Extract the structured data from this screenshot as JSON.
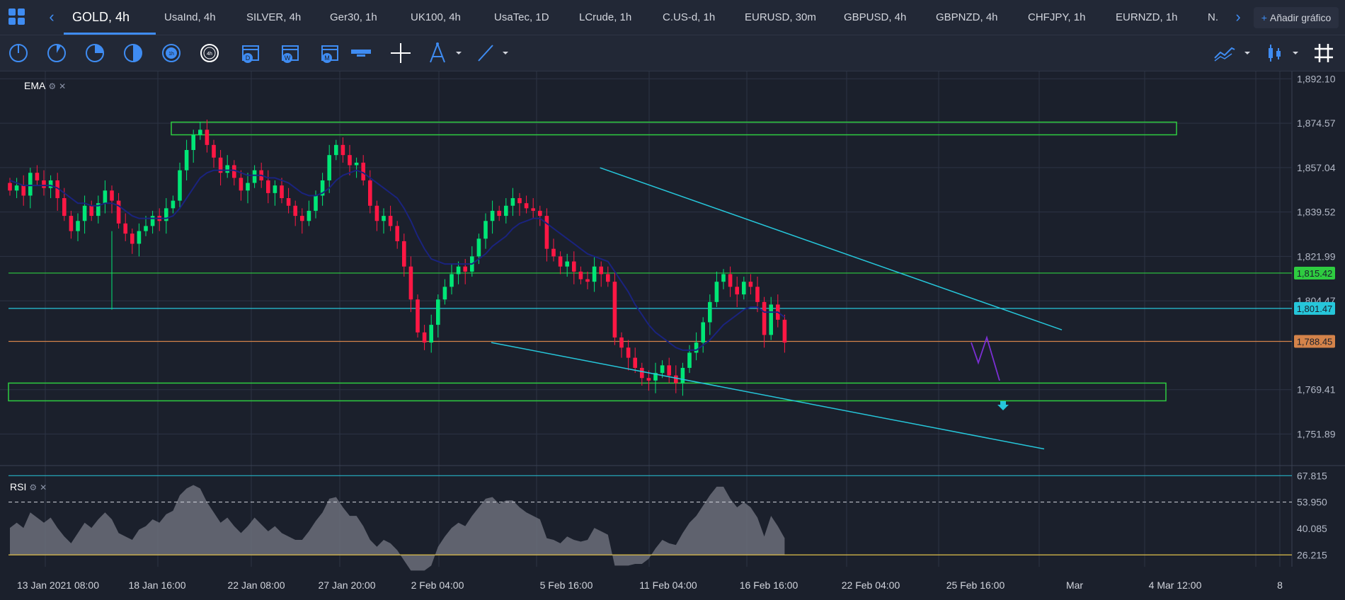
{
  "tabs": [
    {
      "label": "GOLD, 4h",
      "active": true
    },
    {
      "label": "UsaInd, 4h"
    },
    {
      "label": "SILVER, 4h"
    },
    {
      "label": "Ger30, 1h"
    },
    {
      "label": "UK100, 4h"
    },
    {
      "label": "UsaTec, 1D"
    },
    {
      "label": "LCrude, 1h"
    },
    {
      "label": "C.US-d, 1h"
    },
    {
      "label": "EURUSD, 30m"
    },
    {
      "label": "GBPUSD, 4h"
    },
    {
      "label": "GBPNZD, 4h"
    },
    {
      "label": "CHFJPY, 1h"
    },
    {
      "label": "EURNZD, 1h"
    },
    {
      "label": "N."
    }
  ],
  "add_chart_label": "Añadir gráfico",
  "toolbar": {
    "timeframe_4h": "4h",
    "day_label": "D",
    "week_label": "W",
    "month_label": "M",
    "tools": [
      "clock-1m-icon",
      "clock-5m-icon",
      "clock-15m-icon",
      "clock-30m-icon",
      "clock-1h-icon",
      "clock-4h-icon",
      "calendar-day-icon",
      "calendar-week-icon",
      "calendar-month-icon",
      "range-icon",
      "crosshair-icon",
      "pitchfork-icon",
      "trendline-icon",
      "indicators-icon",
      "candle-type-icon",
      "grid-icon"
    ]
  },
  "indicators": {
    "main": "EMA",
    "sub": "RSI"
  },
  "colors": {
    "bull": "#00e676",
    "bear": "#ff1744",
    "ema": "#1a237e",
    "channel": "#26c6da",
    "zone": "#2ecc40",
    "level_support": "#2ecc40",
    "level_cyan": "#26c6da",
    "level_current": "#d4834a",
    "rsi_line": "#e0c14a",
    "forecast": "#7b2fd4"
  },
  "chart_data": {
    "type": "candlestick",
    "symbol": "GOLD",
    "timeframe": "4h",
    "y_ticks": [
      "1,892.10",
      "1,874.57",
      "1,857.04",
      "1,839.52",
      "1,821.99",
      "1,804.47",
      "1,769.41",
      "1,751.89"
    ],
    "ylim": [
      1740.0,
      1895.0
    ],
    "x_ticks": [
      "13 Jan 2021 08:00",
      "18 Jan 16:00",
      "22 Jan 08:00",
      "27 Jan 20:00",
      "2 Feb 04:00",
      "5 Feb 16:00",
      "11 Feb 04:00",
      "16 Feb 16:00",
      "22 Feb 04:00",
      "25 Feb 16:00",
      "Mar",
      "4 Mar 12:00",
      "8"
    ],
    "levels": [
      {
        "value": 1815.42,
        "label": "1,815.42",
        "color": "#2ecc40"
      },
      {
        "value": 1801.47,
        "label": "1,801.47",
        "color": "#26c6da"
      },
      {
        "value": 1788.45,
        "label": "1,788.45",
        "color": "#d4834a"
      }
    ],
    "close_series": [
      1848,
      1850,
      1846,
      1855,
      1852,
      1849,
      1852,
      1845,
      1838,
      1832,
      1836,
      1842,
      1838,
      1843,
      1848,
      1844,
      1835,
      1831,
      1827,
      1832,
      1834,
      1838,
      1836,
      1841,
      1844,
      1856,
      1864,
      1870,
      1872,
      1866,
      1861,
      1855,
      1858,
      1853,
      1848,
      1851,
      1856,
      1852,
      1847,
      1850,
      1845,
      1842,
      1838,
      1836,
      1840,
      1846,
      1852,
      1862,
      1866,
      1862,
      1858,
      1859,
      1852,
      1842,
      1836,
      1838,
      1834,
      1828,
      1818,
      1805,
      1792,
      1788,
      1795,
      1805,
      1810,
      1815,
      1818,
      1816,
      1822,
      1829,
      1836,
      1840,
      1838,
      1842,
      1845,
      1843,
      1841,
      1840,
      1838,
      1825,
      1822,
      1818,
      1820,
      1816,
      1813,
      1812,
      1818,
      1815,
      1812,
      1790,
      1786,
      1782,
      1778,
      1774,
      1773,
      1776,
      1779,
      1775,
      1772,
      1778,
      1784,
      1788,
      1796,
      1804,
      1812,
      1815,
      1810,
      1807,
      1812,
      1810,
      1804,
      1791,
      1803,
      1797,
      1788
    ],
    "ema_series": [
      1852,
      1851,
      1850,
      1850,
      1850,
      1850,
      1850,
      1849,
      1847,
      1845,
      1843,
      1843,
      1842,
      1842,
      1843,
      1843,
      1842,
      1840,
      1838,
      1837,
      1837,
      1837,
      1837,
      1837,
      1838,
      1841,
      1845,
      1849,
      1853,
      1855,
      1856,
      1856,
      1856,
      1856,
      1855,
      1854,
      1854,
      1854,
      1853,
      1853,
      1852,
      1851,
      1849,
      1847,
      1846,
      1846,
      1847,
      1849,
      1852,
      1854,
      1855,
      1856,
      1855,
      1853,
      1851,
      1849,
      1847,
      1845,
      1841,
      1836,
      1830,
      1825,
      1821,
      1820,
      1819,
      1819,
      1819,
      1819,
      1819,
      1821,
      1823,
      1826,
      1828,
      1830,
      1833,
      1835,
      1836,
      1837,
      1837,
      1835,
      1833,
      1831,
      1829,
      1827,
      1825,
      1823,
      1822,
      1821,
      1820,
      1816,
      1812,
      1808,
      1803,
      1799,
      1795,
      1792,
      1790,
      1788,
      1786,
      1785,
      1785,
      1785,
      1787,
      1789,
      1792,
      1795,
      1797,
      1799,
      1801,
      1802,
      1802,
      1800,
      1800,
      1800,
      1798
    ],
    "forecast": [
      1788,
      1780,
      1790,
      1773
    ],
    "channel_upper": [
      {
        "x_index": 66,
        "y": 1857
      },
      {
        "x_index": 107,
        "y": 1793
      }
    ],
    "channel_lower": [
      {
        "x_index": 50,
        "y": 1788
      },
      {
        "x_index": 105,
        "y": 1746
      }
    ],
    "resistance_zone": [
      1870,
      1875
    ],
    "support_zone": [
      1765,
      1772
    ],
    "rsi": {
      "y_ticks": [
        "67.815",
        "53.950",
        "40.085",
        "26.215"
      ],
      "ylim": [
        20,
        72
      ],
      "overbought": 53.95,
      "oversold": 26.215
    }
  }
}
